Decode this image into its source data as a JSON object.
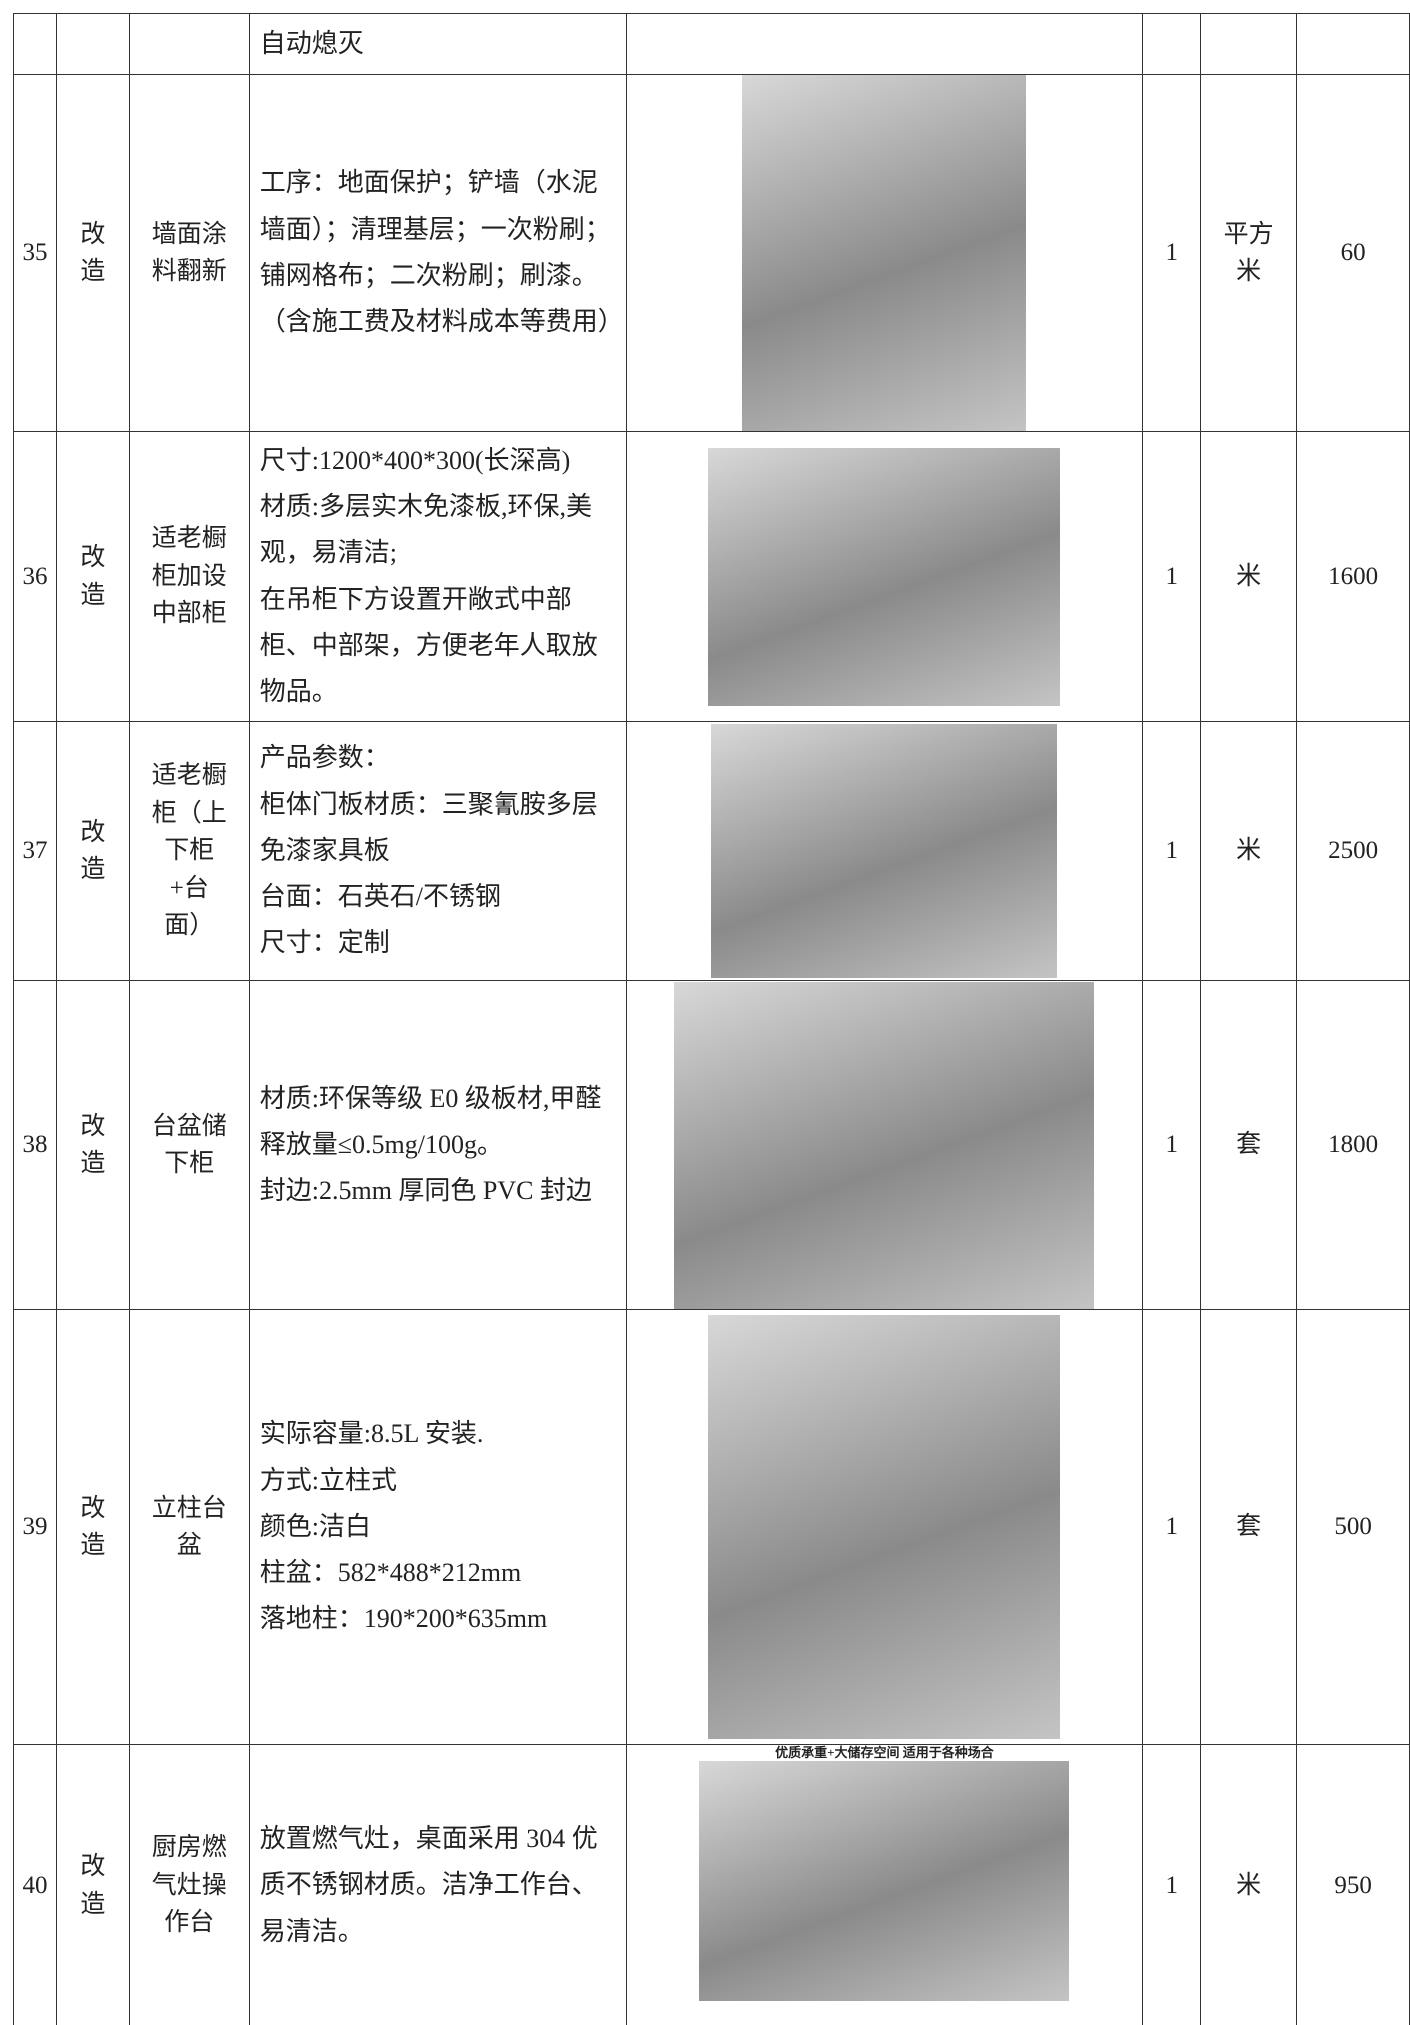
{
  "table": {
    "rows": [
      {
        "desc": [
          "自动熄灭"
        ]
      },
      {
        "no": "35",
        "type": "改造",
        "name": "墙面涂料翻新",
        "desc": [
          "工序：地面保护；铲墙（水泥墙面）；清理基层；一次粉刷；铺网格布；二次粉刷；刷漆。（含施工费及材料成本等费用）"
        ],
        "qty": "1",
        "unit": "平方米",
        "price": "60"
      },
      {
        "no": "36",
        "type": "改造",
        "name": "适老橱柜加设中部柜",
        "desc": [
          "尺寸:1200*400*300(长深高)",
          "材质:多层实木免漆板,环保,美观，易清洁;",
          "在吊柜下方设置开敞式中部柜、中部架，方便老年人取放物品。"
        ],
        "qty": "1",
        "unit": "米",
        "price": "1600"
      },
      {
        "no": "37",
        "type": "改造",
        "name": "适老橱柜（上下柜+台面）",
        "desc": [
          "产品参数：",
          "柜体门板材质：三聚氰胺多层免漆家具板",
          "台面：石英石/不锈钢",
          "尺寸：定制"
        ],
        "qty": "1",
        "unit": "米",
        "price": "2500"
      },
      {
        "no": "38",
        "type": "改造",
        "name": "台盆储下柜",
        "desc": [
          "材质:环保等级 E0 级板材,甲醛释放量≤0.5mg/100g。",
          "封边:2.5mm 厚同色 PVC 封边"
        ],
        "qty": "1",
        "unit": "套",
        "price": "1800"
      },
      {
        "no": "39",
        "type": "改造",
        "name": "立柱台盆",
        "desc": [
          "实际容量:8.5L 安装.",
          "方式:立柱式",
          "颜色:洁白",
          "柱盆：582*488*212mm",
          "落地柱：190*200*635mm"
        ],
        "qty": "1",
        "unit": "套",
        "price": "500"
      },
      {
        "no": "40",
        "type": "改造",
        "name": "厨房燃气灶操作台",
        "desc": [
          "放置燃气灶，桌面采用 304 优质不锈钢材质。洁净工作台、易清洁。"
        ],
        "qty": "1",
        "unit": "米",
        "price": "950",
        "image_caption": "优质承重+大储存空间 适用于各种场合"
      }
    ]
  }
}
